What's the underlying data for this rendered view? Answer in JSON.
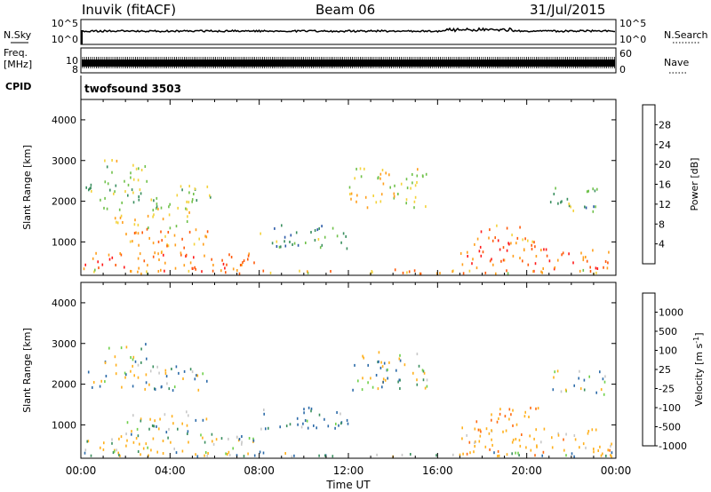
{
  "header": {
    "title_left": "Inuvik (fitACF)",
    "title_center": "Beam 06",
    "title_right": "31/Jul/2015"
  },
  "top_panels": {
    "nsky_label": "N.Sky",
    "nsky_ticks": [
      "10^5",
      "10^0"
    ],
    "nsearch_label": "N.Search",
    "freq_label_line1": "Freq.",
    "freq_label_line2": "[MHz]",
    "freq_ticks": [
      "10",
      "8"
    ],
    "nave_ticks": [
      "60",
      "0"
    ],
    "nave_label": "Nave",
    "cpid_label": "CPID",
    "cpid_value": "twofsound 3503"
  },
  "chart_data": [
    {
      "type": "heatmap",
      "panel": "power",
      "ylabel": "Slant Range [km]",
      "ylim": [
        180,
        4500
      ],
      "y_ticks": [
        1000,
        2000,
        3000,
        4000
      ],
      "xlabel": "Time UT",
      "x_ticks": [
        "00:00",
        "04:00",
        "08:00",
        "12:00",
        "16:00",
        "20:00",
        "00:00"
      ],
      "colorbar_label": "Power [dB]",
      "colorbar_ticks": [
        "4",
        "8",
        "12",
        "16",
        "20",
        "24",
        "28"
      ],
      "colorbar_range": [
        0,
        32
      ],
      "colors": [
        "#1a1aff",
        "#2c5aa8",
        "#3a8f5f",
        "#6fc14a",
        "#f4d23a",
        "#ff9f1c",
        "#ff5a0a",
        "#ff1a1a"
      ],
      "regions": [
        {
          "t0": 0.1,
          "t1": 7.5,
          "r0": 200,
          "r1": 700,
          "value": 26
        },
        {
          "t0": 6.3,
          "t1": 7.8,
          "r0": 300,
          "r1": 700,
          "value": 28
        },
        {
          "t0": 2.0,
          "t1": 6.0,
          "r0": 700,
          "r1": 1300,
          "value": 22
        },
        {
          "t0": 1.0,
          "t1": 5.0,
          "r0": 1300,
          "r1": 1800,
          "value": 18
        },
        {
          "t0": 0.2,
          "t1": 5.8,
          "r0": 1800,
          "r1": 2400,
          "value": 14
        },
        {
          "t0": 1.0,
          "t1": 3.0,
          "r0": 2400,
          "r1": 3000,
          "value": 16
        },
        {
          "t0": 8.0,
          "t1": 12.0,
          "r0": 800,
          "r1": 1400,
          "value": 12
        },
        {
          "t0": 12.0,
          "t1": 15.5,
          "r0": 1800,
          "r1": 2800,
          "value": 18
        },
        {
          "t0": 17.0,
          "t1": 23.8,
          "r0": 200,
          "r1": 800,
          "value": 26
        },
        {
          "t0": 17.5,
          "t1": 20.5,
          "r0": 800,
          "r1": 1400,
          "value": 24
        },
        {
          "t0": 21.0,
          "t1": 23.5,
          "r0": 1700,
          "r1": 2300,
          "value": 12
        },
        {
          "t0": 0.0,
          "t1": 24.0,
          "r0": 180,
          "r1": 300,
          "value": 20
        }
      ]
    },
    {
      "type": "heatmap",
      "panel": "velocity",
      "ylabel": "Slant Range [km]",
      "ylim": [
        180,
        4500
      ],
      "y_ticks": [
        1000,
        2000,
        3000,
        4000
      ],
      "xlabel": "Time UT",
      "x_ticks": [
        "00:00",
        "04:00",
        "08:00",
        "12:00",
        "16:00",
        "20:00",
        "00:00"
      ],
      "colorbar_label": "Velocity [m s^-1]",
      "colorbar_ticks": [
        "1000",
        "500",
        "100",
        "25",
        "-25",
        "-100",
        "-500",
        "-1000"
      ],
      "colors": [
        "#2a4cc8",
        "#2b6aa8",
        "#3a8f5f",
        "#6fd04a",
        "#c8c8c8",
        "#ffb01c",
        "#ff6a10",
        "#ff1a1a"
      ],
      "regions": [
        {
          "t0": 0.1,
          "t1": 7.5,
          "r0": 200,
          "r1": 700,
          "value": -150
        },
        {
          "t0": 2.0,
          "t1": 6.0,
          "r0": 700,
          "r1": 1300,
          "value": -60
        },
        {
          "t0": 0.2,
          "t1": 5.8,
          "r0": 1800,
          "r1": 2400,
          "value": 0
        },
        {
          "t0": 1.0,
          "t1": 3.0,
          "r0": 2400,
          "r1": 3000,
          "value": 0
        },
        {
          "t0": 6.5,
          "t1": 8.0,
          "r0": 300,
          "r1": 700,
          "value": 0
        },
        {
          "t0": 8.0,
          "t1": 12.0,
          "r0": 800,
          "r1": 1400,
          "value": 120
        },
        {
          "t0": 12.0,
          "t1": 15.5,
          "r0": 1800,
          "r1": 2800,
          "value": 0
        },
        {
          "t0": 17.0,
          "t1": 23.8,
          "r0": 200,
          "r1": 900,
          "value": -300
        },
        {
          "t0": 17.5,
          "t1": 20.5,
          "r0": 800,
          "r1": 1400,
          "value": -500
        },
        {
          "t0": 21.0,
          "t1": 23.5,
          "r0": 1700,
          "r1": 2300,
          "value": 0
        },
        {
          "t0": 0.0,
          "t1": 24.0,
          "r0": 180,
          "r1": 300,
          "value": 40
        }
      ]
    }
  ]
}
